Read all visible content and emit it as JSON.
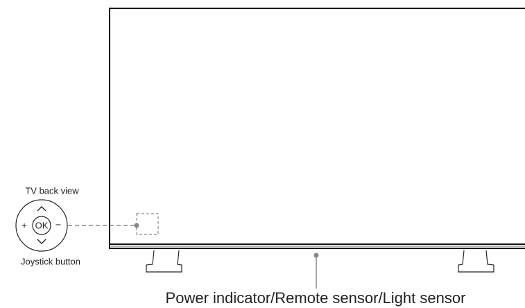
{
  "labels": {
    "back_view": "TV back view",
    "joystick": "Joystick button",
    "sensor": "Power indicator/Remote sensor/Light sensor"
  },
  "joystick_keys": {
    "plus": "+",
    "ok": "OK",
    "minus": "−"
  }
}
